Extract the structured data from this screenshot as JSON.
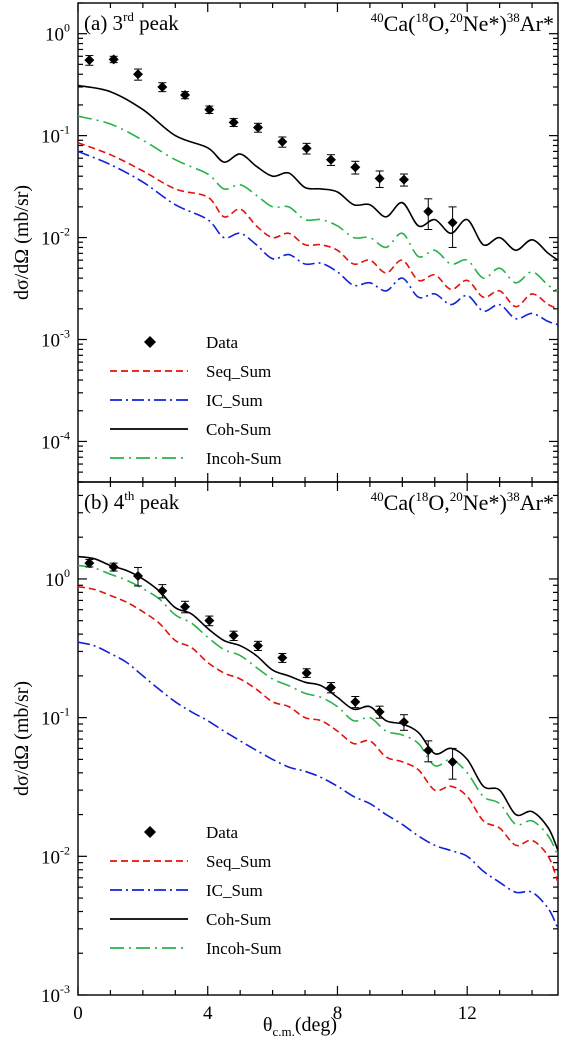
{
  "figure": {
    "xlabel_main": "θ",
    "xlabel_sub": "c.m.",
    "xlabel_unit": "(deg)",
    "x_ticks": [
      0,
      4,
      8,
      12
    ]
  },
  "colors": {
    "data": "#000000",
    "seq": "#e3120b",
    "ic": "#1222d6",
    "coh": "#000000",
    "incoh": "#29b24a"
  },
  "chart_data": [
    {
      "type": "line",
      "panel_label": "(a) 3",
      "panel_label_sup": "rd",
      "panel_label_tail": " peak",
      "reaction": {
        "a": "40",
        "b": "Ca(",
        "c": "18",
        "d": "O,",
        "e": "20",
        "f": "Ne*)",
        "g": "38",
        "h": "Ar*"
      },
      "ylabel": "dσ/dΩ (mb/sr)",
      "xlim": [
        0,
        14.8
      ],
      "ylim": [
        4e-05,
        2
      ],
      "yscale": "log",
      "y_ticks": [
        {
          "v": 1,
          "base": "10",
          "exp": "0"
        },
        {
          "v": 0.1,
          "base": "10",
          "exp": "-1"
        },
        {
          "v": 0.01,
          "base": "10",
          "exp": "-2"
        },
        {
          "v": 0.001,
          "base": "10",
          "exp": "-3"
        },
        {
          "v": 0.0001,
          "base": "10",
          "exp": "-4"
        }
      ],
      "legend": {
        "placement": "bottom-left",
        "data": "Data",
        "seq": "Seq_Sum",
        "ic": "IC_Sum",
        "coh": "Coh-Sum",
        "incoh": "Incoh-Sum"
      },
      "data_points": [
        {
          "x": 0.35,
          "y": 0.55,
          "err": 0.06
        },
        {
          "x": 1.1,
          "y": 0.56,
          "err": 0.04
        },
        {
          "x": 1.85,
          "y": 0.4,
          "err": 0.05
        },
        {
          "x": 2.6,
          "y": 0.3,
          "err": 0.03
        },
        {
          "x": 3.3,
          "y": 0.25,
          "err": 0.02
        },
        {
          "x": 4.05,
          "y": 0.18,
          "err": 0.015
        },
        {
          "x": 4.8,
          "y": 0.135,
          "err": 0.012
        },
        {
          "x": 5.55,
          "y": 0.12,
          "err": 0.012
        },
        {
          "x": 6.3,
          "y": 0.087,
          "err": 0.01
        },
        {
          "x": 7.05,
          "y": 0.075,
          "err": 0.009
        },
        {
          "x": 7.8,
          "y": 0.058,
          "err": 0.007
        },
        {
          "x": 8.55,
          "y": 0.049,
          "err": 0.007
        },
        {
          "x": 9.3,
          "y": 0.038,
          "err": 0.007
        },
        {
          "x": 10.05,
          "y": 0.037,
          "err": 0.005
        },
        {
          "x": 10.8,
          "y": 0.018,
          "err": 0.006
        },
        {
          "x": 11.55,
          "y": 0.014,
          "err": 0.006
        }
      ],
      "series": [
        {
          "key": "coh",
          "x": [
            0,
            1,
            2,
            3,
            4,
            4.5,
            5,
            5.5,
            6,
            6.5,
            7,
            7.5,
            8,
            8.5,
            9,
            9.5,
            10,
            10.5,
            11,
            11.5,
            12,
            12.5,
            13,
            13.5,
            14,
            14.5,
            14.8
          ],
          "y": [
            0.31,
            0.27,
            0.18,
            0.1,
            0.076,
            0.055,
            0.066,
            0.05,
            0.04,
            0.043,
            0.031,
            0.03,
            0.028,
            0.021,
            0.021,
            0.016,
            0.022,
            0.013,
            0.015,
            0.011,
            0.015,
            0.0085,
            0.01,
            0.0075,
            0.0095,
            0.007,
            0.006
          ]
        },
        {
          "key": "incoh",
          "x": [
            0,
            1,
            2,
            3,
            4,
            4.5,
            5,
            5.5,
            6,
            6.5,
            7,
            7.5,
            8,
            8.5,
            9,
            9.5,
            10,
            10.5,
            11,
            11.5,
            12,
            12.5,
            13,
            13.5,
            14,
            14.5,
            14.8
          ],
          "y": [
            0.155,
            0.13,
            0.09,
            0.058,
            0.042,
            0.03,
            0.033,
            0.026,
            0.02,
            0.02,
            0.015,
            0.015,
            0.013,
            0.01,
            0.01,
            0.008,
            0.011,
            0.0065,
            0.0075,
            0.0055,
            0.006,
            0.004,
            0.005,
            0.0036,
            0.0046,
            0.0034,
            0.003
          ]
        },
        {
          "key": "seq",
          "x": [
            0,
            1,
            2,
            3,
            4,
            4.5,
            5,
            5.5,
            6,
            6.5,
            7,
            7.5,
            8,
            8.5,
            9,
            9.5,
            10,
            10.5,
            11,
            11.5,
            12,
            12.5,
            13,
            13.5,
            14,
            14.5,
            14.8
          ],
          "y": [
            0.085,
            0.065,
            0.045,
            0.03,
            0.025,
            0.016,
            0.019,
            0.013,
            0.01,
            0.011,
            0.0085,
            0.0085,
            0.0075,
            0.0055,
            0.006,
            0.0045,
            0.006,
            0.0038,
            0.0043,
            0.0031,
            0.0038,
            0.0026,
            0.003,
            0.0021,
            0.0028,
            0.0022,
            0.002
          ]
        },
        {
          "key": "ic",
          "x": [
            0,
            1,
            2,
            3,
            4,
            4.5,
            5,
            5.5,
            6,
            6.5,
            7,
            7.5,
            8,
            8.5,
            9,
            9.5,
            10,
            10.5,
            11,
            11.5,
            12,
            12.5,
            13,
            13.5,
            14,
            14.5,
            14.8
          ],
          "y": [
            0.07,
            0.052,
            0.035,
            0.021,
            0.015,
            0.01,
            0.011,
            0.0085,
            0.0062,
            0.0068,
            0.0055,
            0.0056,
            0.0046,
            0.0034,
            0.0036,
            0.003,
            0.004,
            0.0026,
            0.0028,
            0.0022,
            0.0027,
            0.0019,
            0.0022,
            0.0016,
            0.0018,
            0.0015,
            0.0014
          ]
        }
      ]
    },
    {
      "type": "line",
      "panel_label": "(b) 4",
      "panel_label_sup": "th",
      "panel_label_tail": " peak",
      "reaction": {
        "a": "40",
        "b": "Ca(",
        "c": "18",
        "d": "O,",
        "e": "20",
        "f": "Ne*)",
        "g": "38",
        "h": "Ar*"
      },
      "ylabel": "dσ/dΩ (mb/sr)",
      "xlim": [
        0,
        14.8
      ],
      "ylim": [
        0.001,
        5
      ],
      "yscale": "log",
      "y_ticks": [
        {
          "v": 1,
          "base": "10",
          "exp": "0"
        },
        {
          "v": 0.1,
          "base": "10",
          "exp": "-1"
        },
        {
          "v": 0.01,
          "base": "10",
          "exp": "-2"
        },
        {
          "v": 0.001,
          "base": "10",
          "exp": "-3"
        }
      ],
      "legend": {
        "placement": "bottom-left",
        "data": "Data",
        "seq": "Seq_Sum",
        "ic": "IC_Sum",
        "coh": "Coh-Sum",
        "incoh": "Incoh-Sum"
      },
      "data_points": [
        {
          "x": 0.35,
          "y": 1.3,
          "err": 0.08
        },
        {
          "x": 1.1,
          "y": 1.22,
          "err": 0.08
        },
        {
          "x": 1.85,
          "y": 1.05,
          "err": 0.16
        },
        {
          "x": 2.6,
          "y": 0.82,
          "err": 0.09
        },
        {
          "x": 3.3,
          "y": 0.63,
          "err": 0.06
        },
        {
          "x": 4.05,
          "y": 0.5,
          "err": 0.04
        },
        {
          "x": 4.8,
          "y": 0.39,
          "err": 0.03
        },
        {
          "x": 5.55,
          "y": 0.33,
          "err": 0.025
        },
        {
          "x": 6.3,
          "y": 0.27,
          "err": 0.02
        },
        {
          "x": 7.05,
          "y": 0.21,
          "err": 0.015
        },
        {
          "x": 7.8,
          "y": 0.165,
          "err": 0.014
        },
        {
          "x": 8.55,
          "y": 0.13,
          "err": 0.012
        },
        {
          "x": 9.3,
          "y": 0.11,
          "err": 0.011
        },
        {
          "x": 10.05,
          "y": 0.093,
          "err": 0.012
        },
        {
          "x": 10.8,
          "y": 0.058,
          "err": 0.01
        },
        {
          "x": 11.55,
          "y": 0.048,
          "err": 0.012
        }
      ],
      "series": [
        {
          "key": "coh",
          "x": [
            0,
            0.5,
            1,
            1.5,
            2,
            2.5,
            3,
            3.5,
            4,
            4.5,
            5,
            5.5,
            6,
            6.5,
            7,
            7.5,
            8,
            8.5,
            9,
            9.5,
            10,
            10.5,
            11,
            11.5,
            12,
            12.5,
            13,
            13.5,
            14,
            14.5,
            14.8
          ],
          "y": [
            1.45,
            1.4,
            1.25,
            1.15,
            1.0,
            0.82,
            0.62,
            0.56,
            0.44,
            0.36,
            0.33,
            0.28,
            0.22,
            0.2,
            0.18,
            0.17,
            0.14,
            0.115,
            0.12,
            0.095,
            0.09,
            0.078,
            0.055,
            0.06,
            0.05,
            0.032,
            0.03,
            0.02,
            0.021,
            0.016,
            0.011
          ]
        },
        {
          "key": "incoh",
          "x": [
            0,
            0.5,
            1,
            1.5,
            2,
            2.5,
            3,
            3.5,
            4,
            4.5,
            5,
            5.5,
            6,
            6.5,
            7,
            7.5,
            8,
            8.5,
            9,
            9.5,
            10,
            10.5,
            11,
            11.5,
            12,
            12.5,
            13,
            13.5,
            14,
            14.5,
            14.8
          ],
          "y": [
            1.25,
            1.2,
            1.08,
            0.98,
            0.85,
            0.72,
            0.55,
            0.48,
            0.38,
            0.31,
            0.28,
            0.23,
            0.19,
            0.17,
            0.15,
            0.14,
            0.12,
            0.095,
            0.1,
            0.08,
            0.075,
            0.065,
            0.045,
            0.05,
            0.04,
            0.027,
            0.024,
            0.017,
            0.018,
            0.014,
            0.01
          ]
        },
        {
          "key": "seq",
          "x": [
            0,
            0.5,
            1,
            1.5,
            2,
            2.5,
            3,
            3.5,
            4,
            4.5,
            5,
            5.5,
            6,
            6.5,
            7,
            7.5,
            8,
            8.5,
            9,
            9.5,
            10,
            10.5,
            11,
            11.5,
            12,
            12.5,
            13,
            13.5,
            14,
            14.5,
            14.8
          ],
          "y": [
            0.88,
            0.84,
            0.76,
            0.68,
            0.58,
            0.48,
            0.36,
            0.32,
            0.25,
            0.21,
            0.19,
            0.16,
            0.13,
            0.12,
            0.1,
            0.095,
            0.08,
            0.065,
            0.068,
            0.052,
            0.048,
            0.042,
            0.03,
            0.032,
            0.027,
            0.018,
            0.016,
            0.012,
            0.013,
            0.01,
            0.0065
          ]
        },
        {
          "key": "ic",
          "x": [
            0,
            0.5,
            1,
            1.5,
            2,
            2.5,
            3,
            3.5,
            4,
            4.5,
            5,
            5.5,
            6,
            6.5,
            7,
            7.5,
            8,
            8.5,
            9,
            9.5,
            10,
            10.5,
            11,
            11.5,
            12,
            12.5,
            13,
            13.5,
            14,
            14.5,
            14.8
          ],
          "y": [
            0.35,
            0.33,
            0.29,
            0.25,
            0.2,
            0.16,
            0.13,
            0.11,
            0.095,
            0.08,
            0.068,
            0.058,
            0.05,
            0.044,
            0.041,
            0.037,
            0.032,
            0.027,
            0.024,
            0.02,
            0.017,
            0.014,
            0.012,
            0.011,
            0.01,
            0.0078,
            0.0065,
            0.0055,
            0.0055,
            0.0042,
            0.003
          ]
        }
      ]
    }
  ]
}
